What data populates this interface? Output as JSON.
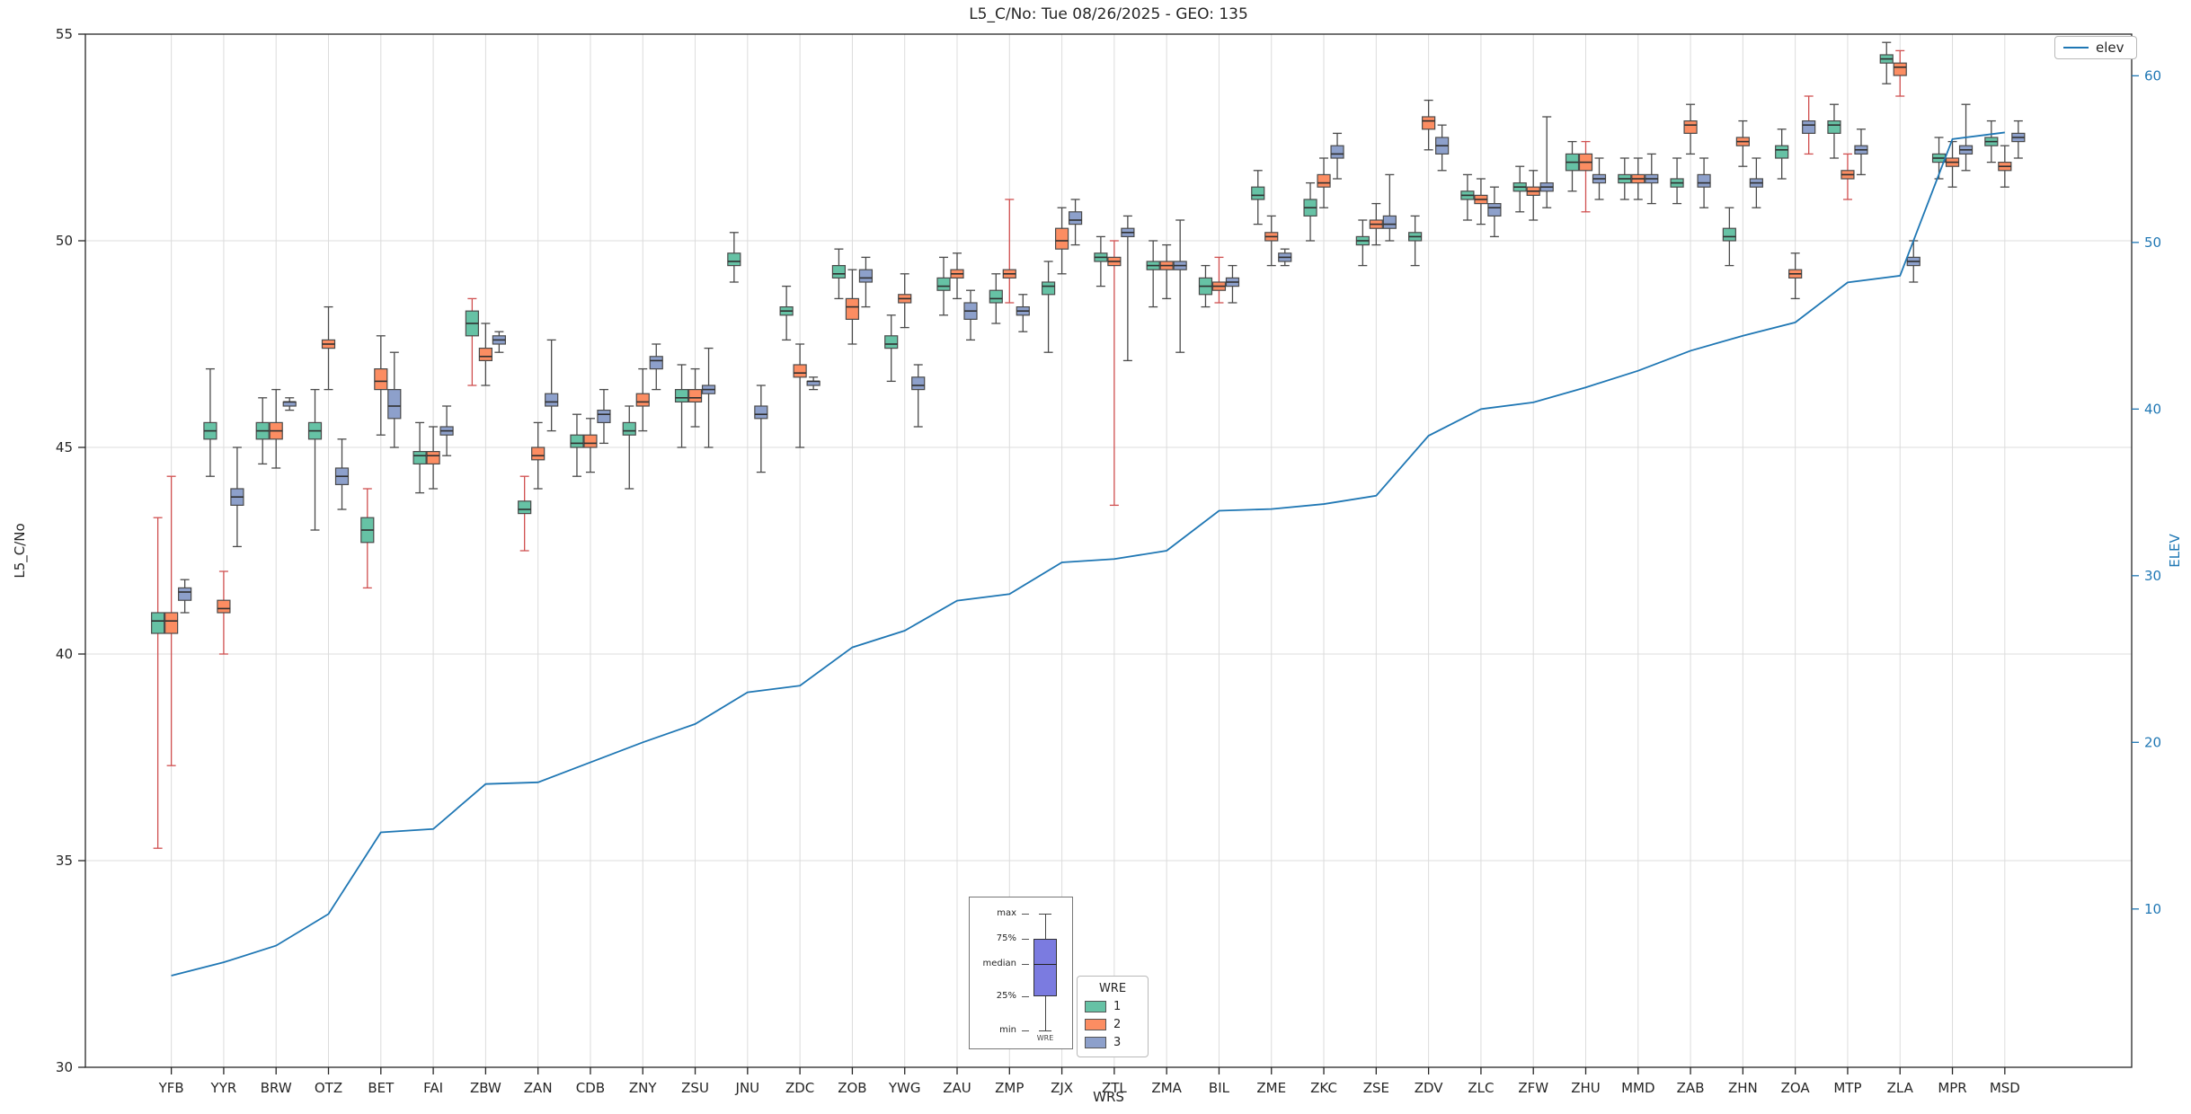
{
  "title": "L5_C/No: Tue 08/26/2025 - GEO: 135",
  "axes": {
    "xlabel": "WRS",
    "ylabel_left": "L5_C/No",
    "ylabel_right": "ELEV",
    "yticks_left": [
      30,
      35,
      40,
      45,
      50,
      55
    ],
    "yticks_right": [
      10,
      20,
      30,
      40,
      50,
      60
    ],
    "ylim_left": [
      30,
      55
    ],
    "ylim_right": [
      0.5,
      62.5
    ],
    "grid": true
  },
  "colors": {
    "grid": "#dcdcdc",
    "box_edge": "#4a4a4a",
    "median": "#2f2f2f",
    "whisker": "#4a4a4a",
    "whisker_red": "#d05050",
    "axis": "#262626",
    "right_axis": "#1f77b4"
  },
  "legend": {
    "title": "WRE",
    "entries": [
      {
        "label": "1",
        "color": "#66c2a5"
      },
      {
        "label": "2",
        "color": "#fc8d62"
      },
      {
        "label": "3",
        "color": "#8da0cb"
      }
    ]
  },
  "elev_legend": {
    "label": "elev",
    "color": "#1f77b4"
  },
  "inset": {
    "labels": [
      "max",
      "75%",
      "median",
      "25%",
      "min"
    ],
    "footer": "WRE",
    "box_color": "#7b7be0"
  },
  "chart_data": {
    "type": "boxplot+line",
    "title": "L5_C/No: Tue 08/26/2025 - GEO: 135",
    "xlabel": "WRS",
    "ylabel": "L5_C/No",
    "ylabel_right": "ELEV",
    "legend_position": "lower center",
    "categories": [
      "YFB",
      "YYR",
      "BRW",
      "OTZ",
      "BET",
      "FAI",
      "ZBW",
      "ZAN",
      "CDB",
      "ZNY",
      "ZSU",
      "JNU",
      "ZDC",
      "ZOB",
      "YWG",
      "ZAU",
      "ZMP",
      "ZJX",
      "ZTL",
      "ZMA",
      "BIL",
      "ZME",
      "ZKC",
      "ZSE",
      "ZDV",
      "ZLC",
      "ZFW",
      "ZHU",
      "MMD",
      "ZAB",
      "ZHN",
      "ZOA",
      "MTP",
      "ZLA",
      "MPR",
      "MSD"
    ],
    "box_value_order": [
      "min",
      "q1",
      "median",
      "q3",
      "max",
      "red_whisker_flag"
    ],
    "series": [
      {
        "name": "1",
        "color": "#66c2a5",
        "boxes": [
          [
            35.3,
            40.5,
            40.8,
            41.0,
            43.3,
            "r"
          ],
          [
            44.3,
            45.2,
            45.4,
            45.6,
            46.9
          ],
          [
            44.6,
            45.2,
            45.4,
            45.6,
            46.2
          ],
          [
            43.0,
            45.2,
            45.4,
            45.6,
            46.4
          ],
          [
            41.6,
            42.7,
            43.0,
            43.3,
            44.0,
            "r"
          ],
          [
            43.9,
            44.6,
            44.8,
            44.9,
            45.6
          ],
          [
            46.5,
            47.7,
            48.0,
            48.3,
            48.6,
            "r"
          ],
          [
            42.5,
            43.4,
            43.5,
            43.7,
            44.3,
            "r"
          ],
          [
            44.3,
            45.0,
            45.1,
            45.3,
            45.8
          ],
          [
            44.0,
            45.3,
            45.4,
            45.6,
            46.0
          ],
          [
            45.0,
            46.1,
            46.2,
            46.4,
            47.0
          ],
          [
            49.0,
            49.4,
            49.5,
            49.7,
            50.2
          ],
          [
            47.6,
            48.2,
            48.3,
            48.4,
            48.9
          ],
          [
            48.6,
            49.1,
            49.2,
            49.4,
            49.8
          ],
          [
            46.6,
            47.4,
            47.5,
            47.7,
            48.2
          ],
          [
            48.2,
            48.8,
            48.9,
            49.1,
            49.6
          ],
          [
            48.0,
            48.5,
            48.6,
            48.8,
            49.2
          ],
          [
            47.3,
            48.7,
            48.9,
            49.0,
            49.5
          ],
          [
            48.9,
            49.5,
            49.6,
            49.7,
            50.1
          ],
          [
            48.4,
            49.3,
            49.4,
            49.5,
            50.0
          ],
          [
            48.4,
            48.7,
            48.9,
            49.1,
            49.4
          ],
          [
            50.4,
            51.0,
            51.1,
            51.3,
            51.7
          ],
          [
            50.0,
            50.6,
            50.8,
            51.0,
            51.4
          ],
          [
            49.4,
            49.9,
            50.0,
            50.1,
            50.5
          ],
          [
            49.4,
            50.0,
            50.1,
            50.2,
            50.6
          ],
          [
            50.5,
            51.0,
            51.1,
            51.2,
            51.6
          ],
          [
            50.7,
            51.2,
            51.3,
            51.4,
            51.8
          ],
          [
            51.2,
            51.7,
            51.9,
            52.1,
            52.4
          ],
          [
            51.0,
            51.4,
            51.5,
            51.6,
            52.0
          ],
          [
            50.9,
            51.3,
            51.4,
            51.5,
            52.0
          ],
          [
            49.4,
            50.0,
            50.1,
            50.3,
            50.8
          ],
          [
            51.5,
            52.0,
            52.2,
            52.3,
            52.7
          ],
          [
            52.0,
            52.6,
            52.8,
            52.9,
            53.3
          ],
          [
            53.8,
            54.3,
            54.4,
            54.5,
            54.8
          ],
          [
            51.5,
            51.9,
            52.0,
            52.1,
            52.5
          ],
          [
            51.9,
            52.3,
            52.4,
            52.5,
            52.9
          ]
        ]
      },
      {
        "name": "2",
        "color": "#fc8d62",
        "boxes": [
          [
            37.3,
            40.5,
            40.8,
            41.0,
            44.3,
            "r"
          ],
          [
            40.0,
            41.0,
            41.1,
            41.3,
            42.0,
            "r"
          ],
          [
            44.5,
            45.2,
            45.4,
            45.6,
            46.4
          ],
          [
            46.4,
            47.4,
            47.5,
            47.6,
            48.4
          ],
          [
            45.3,
            46.4,
            46.6,
            46.9,
            47.7
          ],
          [
            44.0,
            44.6,
            44.8,
            44.9,
            45.5
          ],
          [
            46.5,
            47.1,
            47.2,
            47.4,
            48.0
          ],
          [
            44.0,
            44.7,
            44.8,
            45.0,
            45.6
          ],
          [
            44.4,
            45.0,
            45.1,
            45.3,
            45.7
          ],
          [
            45.4,
            46.0,
            46.1,
            46.3,
            46.9
          ],
          [
            45.5,
            46.1,
            46.2,
            46.4,
            46.9
          ],
          null,
          [
            45.0,
            46.7,
            46.8,
            47.0,
            47.5
          ],
          [
            47.5,
            48.1,
            48.4,
            48.6,
            49.3
          ],
          [
            47.9,
            48.5,
            48.6,
            48.7,
            49.2
          ],
          [
            48.6,
            49.1,
            49.2,
            49.3,
            49.7
          ],
          [
            48.5,
            49.1,
            49.2,
            49.3,
            51.0,
            "r"
          ],
          [
            49.2,
            49.8,
            50.0,
            50.3,
            50.8
          ],
          [
            43.6,
            49.4,
            49.5,
            49.6,
            50.0,
            "r"
          ],
          [
            48.6,
            49.3,
            49.4,
            49.5,
            49.9
          ],
          [
            48.5,
            48.8,
            48.9,
            49.0,
            49.6,
            "r"
          ],
          [
            49.4,
            50.0,
            50.1,
            50.2,
            50.6
          ],
          [
            50.8,
            51.3,
            51.4,
            51.6,
            52.0
          ],
          [
            49.9,
            50.3,
            50.4,
            50.5,
            50.9
          ],
          [
            52.2,
            52.7,
            52.9,
            53.0,
            53.4
          ],
          [
            50.4,
            50.9,
            51.0,
            51.1,
            51.5
          ],
          [
            50.5,
            51.1,
            51.2,
            51.3,
            51.7
          ],
          [
            50.7,
            51.7,
            51.9,
            52.1,
            52.4,
            "r"
          ],
          [
            51.0,
            51.4,
            51.5,
            51.6,
            52.0
          ],
          [
            52.1,
            52.6,
            52.8,
            52.9,
            53.3
          ],
          [
            51.8,
            52.3,
            52.4,
            52.5,
            52.9
          ],
          [
            48.6,
            49.1,
            49.2,
            49.3,
            49.7
          ],
          [
            51.0,
            51.5,
            51.6,
            51.7,
            52.1,
            "r"
          ],
          [
            53.5,
            54.0,
            54.2,
            54.3,
            54.6,
            "r"
          ],
          [
            51.3,
            51.8,
            51.9,
            52.0,
            52.4
          ],
          [
            51.3,
            51.7,
            51.8,
            51.9,
            52.3
          ]
        ]
      },
      {
        "name": "3",
        "color": "#8da0cb",
        "boxes": [
          [
            41.0,
            41.3,
            41.5,
            41.6,
            41.8
          ],
          [
            42.6,
            43.6,
            43.8,
            44.0,
            45.0
          ],
          [
            45.9,
            46.0,
            46.1,
            46.1,
            46.2
          ],
          [
            43.5,
            44.1,
            44.3,
            44.5,
            45.2
          ],
          [
            45.0,
            45.7,
            46.0,
            46.4,
            47.3
          ],
          [
            44.8,
            45.3,
            45.4,
            45.5,
            46.0
          ],
          [
            47.3,
            47.5,
            47.6,
            47.7,
            47.8
          ],
          [
            45.4,
            46.0,
            46.1,
            46.3,
            47.6
          ],
          [
            45.1,
            45.6,
            45.8,
            45.9,
            46.4
          ],
          [
            46.4,
            46.9,
            47.1,
            47.2,
            47.5
          ],
          [
            45.0,
            46.3,
            46.4,
            46.5,
            47.4
          ],
          [
            44.4,
            45.7,
            45.8,
            46.0,
            46.5
          ],
          [
            46.4,
            46.5,
            46.6,
            46.6,
            46.7
          ],
          [
            48.4,
            49.0,
            49.1,
            49.3,
            49.6
          ],
          [
            45.5,
            46.4,
            46.5,
            46.7,
            47.0
          ],
          [
            47.6,
            48.1,
            48.3,
            48.5,
            48.8
          ],
          [
            47.8,
            48.2,
            48.3,
            48.4,
            48.7
          ],
          [
            49.9,
            50.4,
            50.5,
            50.7,
            51.0
          ],
          [
            47.1,
            50.1,
            50.2,
            50.3,
            50.6
          ],
          [
            47.3,
            49.3,
            49.4,
            49.5,
            50.5
          ],
          [
            48.5,
            48.9,
            49.0,
            49.1,
            49.4
          ],
          [
            49.4,
            49.5,
            49.6,
            49.7,
            49.8
          ],
          [
            51.5,
            52.0,
            52.1,
            52.3,
            52.6
          ],
          [
            50.0,
            50.3,
            50.4,
            50.6,
            51.6
          ],
          [
            51.7,
            52.1,
            52.3,
            52.5,
            52.8
          ],
          [
            50.1,
            50.6,
            50.8,
            50.9,
            51.3
          ],
          [
            50.8,
            51.2,
            51.3,
            51.4,
            53.0
          ],
          [
            51.0,
            51.4,
            51.5,
            51.6,
            52.0
          ],
          [
            50.9,
            51.4,
            51.5,
            51.6,
            52.1
          ],
          [
            50.8,
            51.3,
            51.4,
            51.6,
            52.0
          ],
          [
            50.8,
            51.3,
            51.4,
            51.5,
            52.0
          ],
          [
            52.1,
            52.6,
            52.8,
            52.9,
            53.5,
            "r"
          ],
          [
            51.6,
            52.1,
            52.2,
            52.3,
            52.7
          ],
          [
            49.0,
            49.4,
            49.5,
            49.6,
            50.0
          ],
          [
            51.7,
            52.1,
            52.2,
            52.3,
            53.3
          ],
          [
            52.0,
            52.4,
            52.5,
            52.6,
            52.9
          ]
        ]
      }
    ],
    "line": {
      "name": "elev",
      "color": "#1f77b4",
      "axis": "right",
      "values": [
        6.0,
        6.8,
        7.8,
        9.7,
        14.6,
        14.8,
        17.5,
        17.6,
        18.8,
        20.0,
        21.1,
        23.0,
        23.4,
        25.7,
        26.7,
        28.5,
        28.9,
        30.8,
        31.0,
        31.5,
        33.9,
        34.0,
        34.3,
        34.8,
        38.4,
        40.0,
        40.4,
        41.3,
        42.3,
        43.5,
        44.4,
        45.2,
        47.6,
        48.0,
        56.2,
        56.6
      ]
    }
  }
}
